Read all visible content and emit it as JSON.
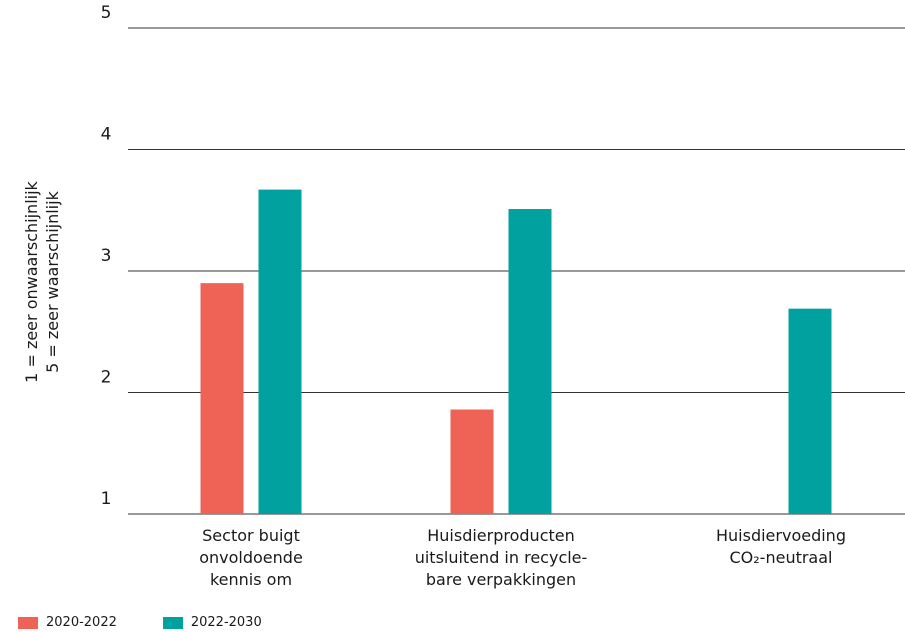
{
  "chart_data": {
    "type": "bar",
    "ylabel_line1": "1 = zeer onwaarschijnlijk",
    "ylabel_line2": "5 = zeer waarschijnlijk",
    "ylim": [
      1,
      5
    ],
    "yticks": [
      "1",
      "2",
      "3",
      "4",
      "5"
    ],
    "grid": true,
    "categories": [
      [
        "Sector buigt",
        "onvoldoende",
        "kennis om"
      ],
      [
        "Huisdierproducten",
        "uitsluitend in recycle-",
        "bare verpakkingen"
      ],
      [
        "Huisdiervoeding",
        "CO₂-neutraal"
      ]
    ],
    "series": [
      {
        "name": "2020-2022",
        "color": "#ee6355",
        "values": [
          2.9,
          1.86,
          null
        ]
      },
      {
        "name": "2022-2030",
        "color": "#00a19e",
        "values": [
          3.67,
          3.51,
          2.69
        ]
      }
    ],
    "legend_position": "bottom-left"
  }
}
